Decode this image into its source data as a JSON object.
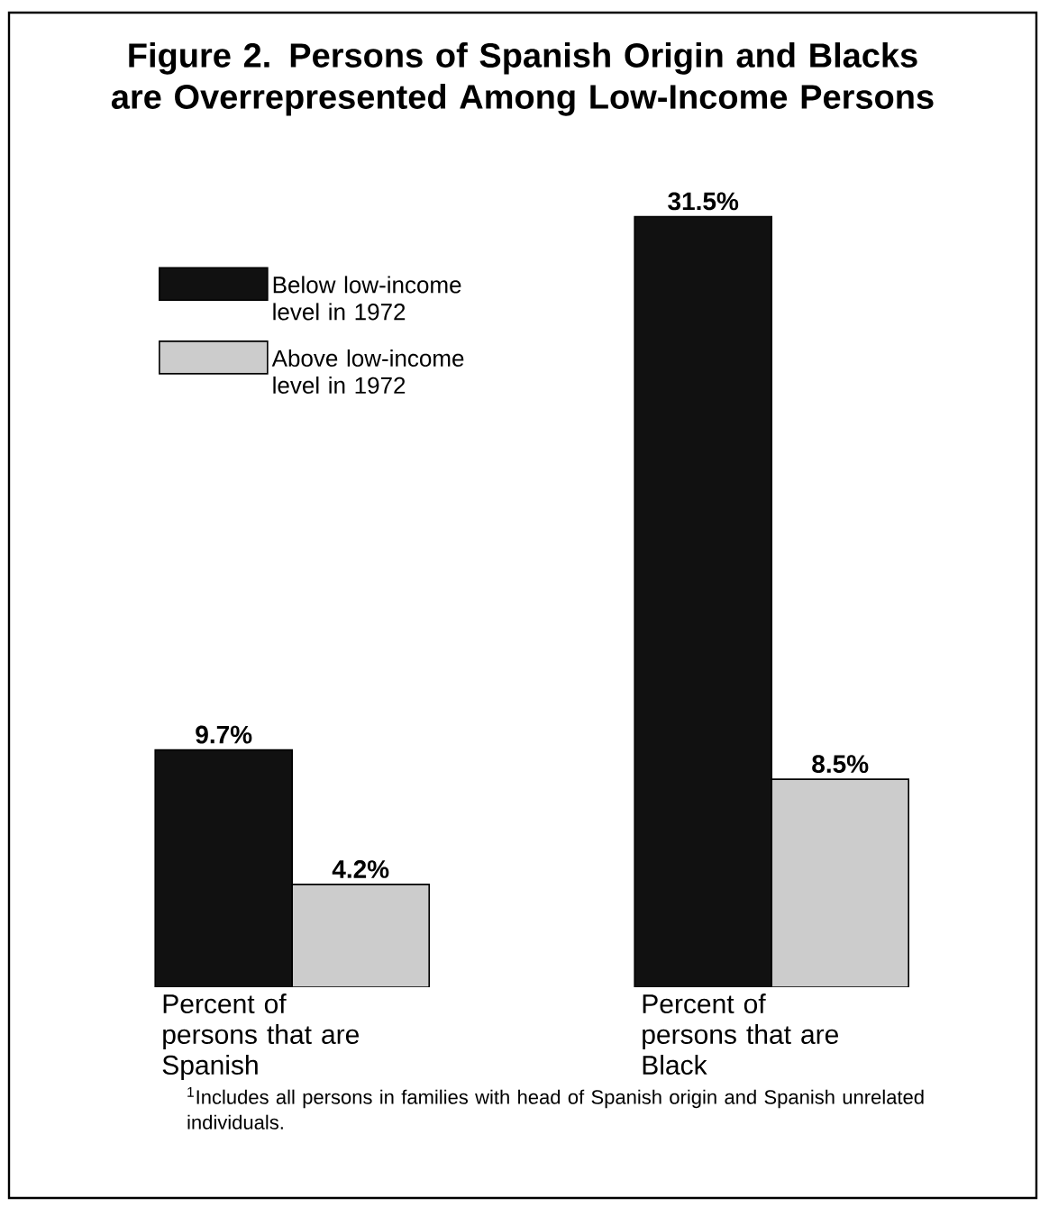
{
  "chart_data": {
    "type": "bar",
    "title": "Figure 2. Persons of Spanish Origin and Blacks are Overrepresented Among Low-Income Persons",
    "categories": [
      "Percent of persons that are Spanish",
      "Percent of persons that are Black"
    ],
    "series": [
      {
        "name": "Below low-income level in 1972",
        "color": "#111111",
        "values": [
          9.7,
          31.5
        ],
        "value_labels": [
          "9.7%",
          "31.5%"
        ]
      },
      {
        "name": "Above low-income level in 1972",
        "color": "#cccccc",
        "values": [
          4.2,
          8.5
        ],
        "value_labels": [
          "4.2%",
          "8.5%"
        ]
      }
    ],
    "legend": "top left",
    "annotations": [
      "$^{1}$Includes all persons in families with head of Spanish origin and Spanish unrelated individuals."
    ]
  }
}
